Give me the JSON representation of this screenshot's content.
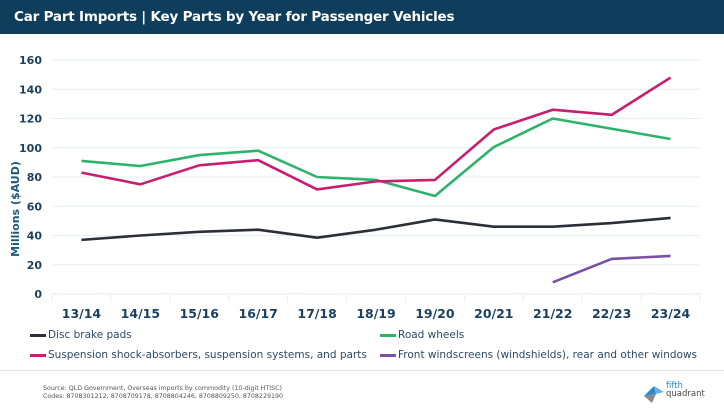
{
  "header": {
    "title": "Car Part Imports | Key Parts by Year for Passenger Vehicles"
  },
  "chart_data": {
    "type": "line",
    "title": "Car Part Imports | Key Parts by Year for Passenger Vehicles",
    "xlabel": "",
    "ylabel": "Millions ($AUD)",
    "ylim": [
      0,
      160
    ],
    "yticks": [
      0,
      20,
      40,
      60,
      80,
      100,
      120,
      140,
      160
    ],
    "grid": true,
    "legend_position": "bottom",
    "categories": [
      "13/14",
      "14/15",
      "15/16",
      "16/17",
      "17/18",
      "18/19",
      "19/20",
      "20/21",
      "21/22",
      "22/23",
      "23/24"
    ],
    "series": [
      {
        "name": "Disc brake pads",
        "color": "#2b2f36",
        "values": [
          37,
          40,
          42.5,
          44,
          38.5,
          44,
          51,
          46,
          46,
          48.5,
          52
        ]
      },
      {
        "name": "Road wheels",
        "color": "#2db36a",
        "values": [
          91,
          87.5,
          95,
          98,
          80,
          78,
          67,
          100.5,
          120,
          113,
          106
        ]
      },
      {
        "name": "Suspension shock-absorbers, suspension systems, and parts",
        "color": "#c81e6e",
        "values": [
          83,
          75,
          88,
          91.5,
          71.5,
          77,
          78,
          112.5,
          126,
          122.5,
          148
        ]
      },
      {
        "name": "Front windscreens (windshields), rear and other windows",
        "color": "#7b4fa6",
        "values": [
          null,
          null,
          null,
          null,
          null,
          null,
          null,
          null,
          8,
          24,
          26
        ]
      }
    ]
  },
  "footer": {
    "source_line": "Source: QLD Government, Overseas imports by commodity (10-digit HTISC)",
    "codes_line": "Codes: 8708301212; 8708709178, 8708804246, 8708809250, 8708229190"
  },
  "logo": {
    "line1": "fifth",
    "line2": "quadrant"
  }
}
